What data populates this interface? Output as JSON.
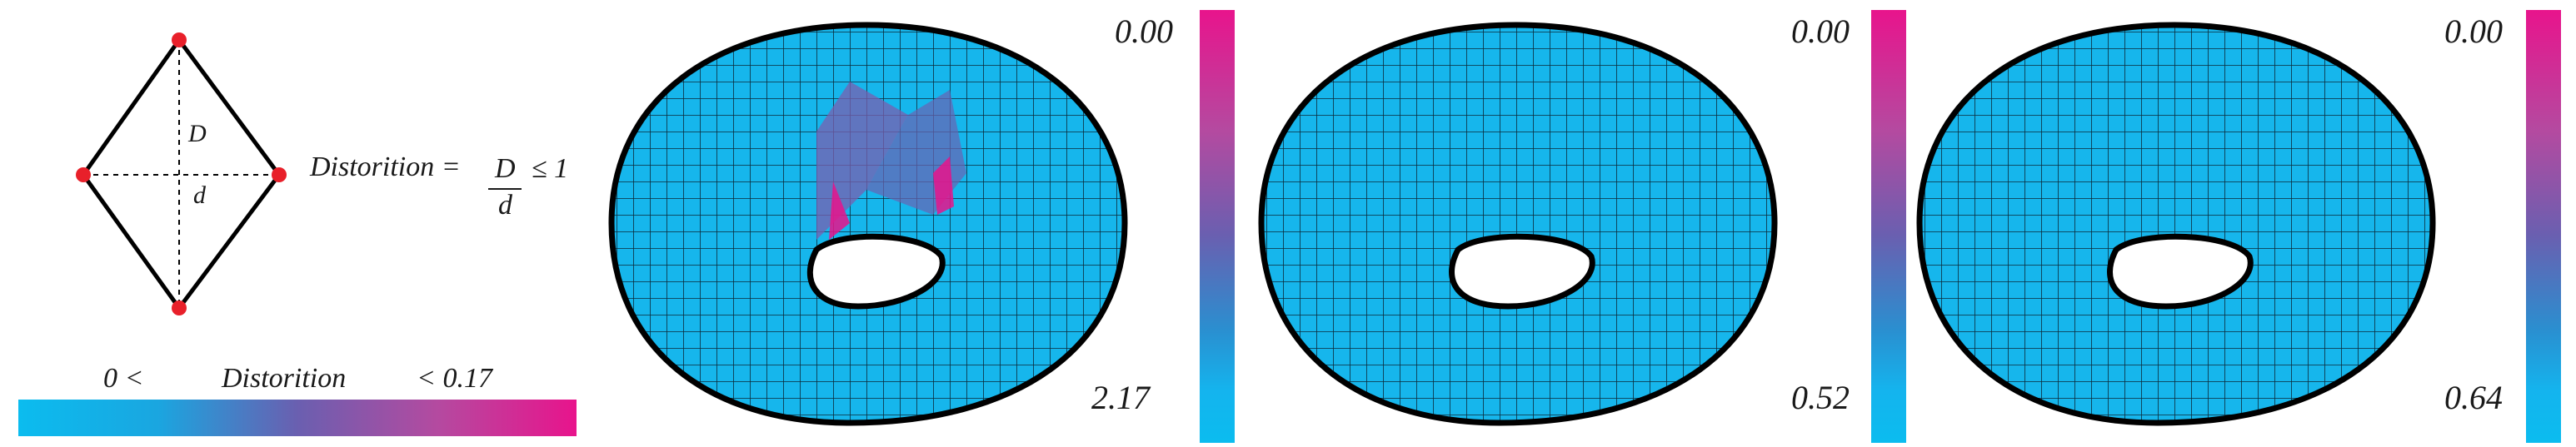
{
  "diagram": {
    "rhombus": {
      "label_D": "D",
      "label_d": "d"
    },
    "formula": {
      "lhs": "Distorition =",
      "numerator": "D",
      "denominator": "d",
      "rhs": "≤ 1"
    },
    "range": {
      "low": "0 <",
      "label": "Distorition",
      "high": "< 0.17"
    }
  },
  "panels": [
    {
      "top_value": "0.00",
      "bottom_value": "2.17"
    },
    {
      "top_value": "0.00",
      "bottom_value": "0.52"
    },
    {
      "top_value": "0.00",
      "bottom_value": "0.64"
    }
  ],
  "colors": {
    "low": "#0bbcef",
    "mid": "#6a5fb0",
    "high": "#e8148c",
    "vertex": "#e8202a"
  }
}
